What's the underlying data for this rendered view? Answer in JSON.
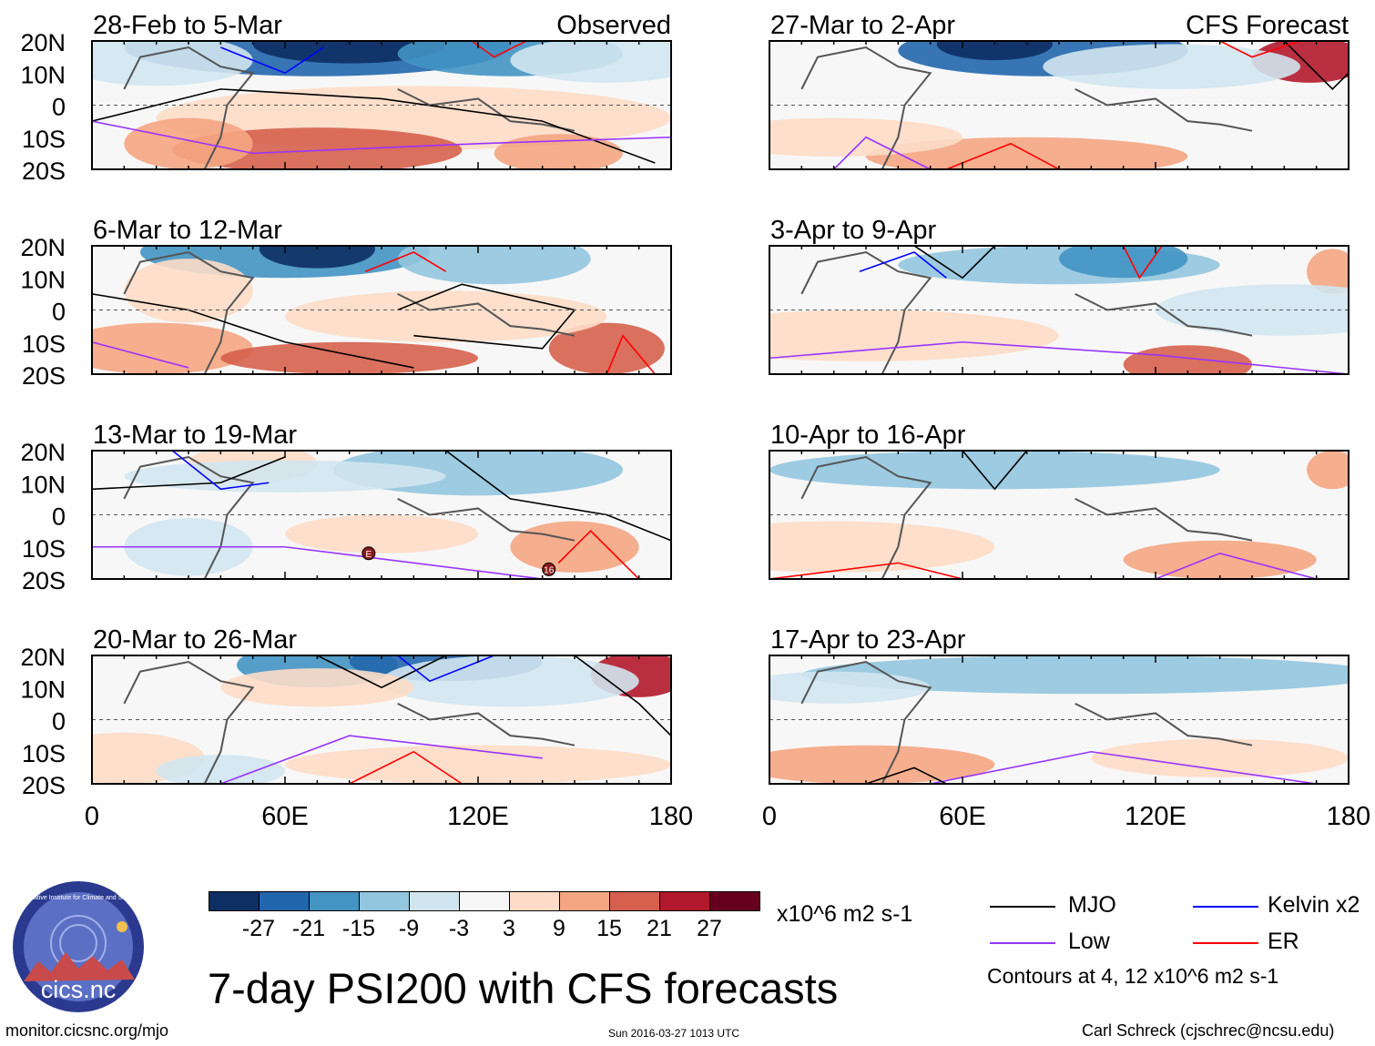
{
  "title": "7-day PSI200 with CFS forecasts",
  "columns": [
    {
      "header": "Observed",
      "panels": [
        "28-Feb to 5-Mar",
        "6-Mar to 12-Mar",
        "13-Mar to 19-Mar",
        "20-Mar to 26-Mar"
      ]
    },
    {
      "header": "CFS Forecast",
      "panels": [
        "27-Mar to 2-Apr",
        "3-Apr to 9-Apr",
        "10-Apr to 16-Apr",
        "17-Apr to 23-Apr"
      ]
    }
  ],
  "lat_labels": [
    "20N",
    "10N",
    "0",
    "10S",
    "20S"
  ],
  "lon_labels": [
    "0",
    "60E",
    "120E",
    "180"
  ],
  "colorbar": {
    "ticks": [
      "-27",
      "-21",
      "-15",
      "-9",
      "-3",
      "3",
      "9",
      "15",
      "21",
      "27"
    ],
    "colors": [
      "#0d2f63",
      "#2166ac",
      "#4393c3",
      "#92c5de",
      "#d1e5f0",
      "#f7f7f7",
      "#fddbc7",
      "#f4a582",
      "#d6604d",
      "#b2182b",
      "#67001f"
    ],
    "units": "x10^6 m2 s-1"
  },
  "legend": {
    "items": [
      {
        "label": "MJO",
        "color": "#000000"
      },
      {
        "label": "Kelvin x2",
        "color": "#0000ff"
      },
      {
        "label": "Low",
        "color": "#9933ff"
      },
      {
        "label": "ER",
        "color": "#ff0000"
      }
    ],
    "note": "Contours at 4, 12 x10^6 m2 s-1"
  },
  "markers": [
    {
      "label": "E",
      "lon": 86,
      "lat": -12
    },
    {
      "label": "16",
      "lon": 142,
      "lat": -17
    }
  ],
  "logo_text": "cics.nc",
  "logo_ring_text": "Cooperative Institute for Climate and Satellites",
  "footer": {
    "left": "monitor.cicsnc.org/mjo",
    "center": "Sun 2016-03-27 1013 UTC",
    "right": "Carl Schreck (cjschrec@ncsu.edu)"
  }
}
